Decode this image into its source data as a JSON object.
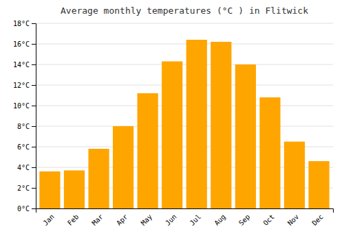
{
  "chart_data": {
    "type": "bar",
    "title": "Average monthly temperatures (°C ) in Flitwick",
    "categories": [
      "Jan",
      "Feb",
      "Mar",
      "Apr",
      "May",
      "Jun",
      "Jul",
      "Aug",
      "Sep",
      "Oct",
      "Nov",
      "Dec"
    ],
    "values": [
      3.6,
      3.7,
      5.8,
      8.0,
      11.2,
      14.3,
      16.4,
      16.2,
      14.0,
      10.8,
      6.5,
      4.6
    ],
    "color": "#FFA500",
    "ylim": [
      0,
      18
    ],
    "yticks": [
      {
        "value": 0,
        "label": "0°C"
      },
      {
        "value": 2,
        "label": "2°C"
      },
      {
        "value": 4,
        "label": "4°C"
      },
      {
        "value": 6,
        "label": "6°C"
      },
      {
        "value": 8,
        "label": "8°C"
      },
      {
        "value": 10,
        "label": "10°C"
      },
      {
        "value": 12,
        "label": "12°C"
      },
      {
        "value": 14,
        "label": "14°C"
      },
      {
        "value": 16,
        "label": "16°C"
      },
      {
        "value": 18,
        "label": "18°C"
      }
    ],
    "grid": true
  }
}
